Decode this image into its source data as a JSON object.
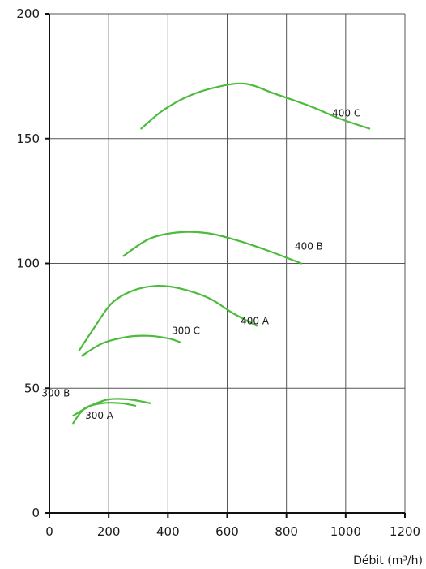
{
  "chart_data": {
    "type": "line",
    "title": "",
    "xlabel": "Débit (m³/h)",
    "ylabel": "",
    "xlim": [
      0,
      1200
    ],
    "ylim": [
      0,
      200
    ],
    "x_ticks": [
      0,
      200,
      400,
      600,
      800,
      1000,
      1200
    ],
    "y_ticks": [
      0,
      50,
      100,
      150,
      200
    ],
    "grid": true,
    "line_color": "#4cbb3c",
    "series": [
      {
        "name": "300 A",
        "points": [
          [
            80,
            36
          ],
          [
            120,
            42
          ],
          [
            180,
            44
          ],
          [
            240,
            44
          ],
          [
            290,
            43
          ]
        ]
      },
      {
        "name": "300 B",
        "points": [
          [
            80,
            39
          ],
          [
            140,
            43
          ],
          [
            200,
            45.5
          ],
          [
            270,
            45.5
          ],
          [
            340,
            44
          ]
        ]
      },
      {
        "name": "300 C",
        "points": [
          [
            110,
            63
          ],
          [
            180,
            68
          ],
          [
            260,
            70.5
          ],
          [
            330,
            71
          ],
          [
            400,
            70
          ],
          [
            440,
            68.5
          ]
        ]
      },
      {
        "name": "400 A",
        "points": [
          [
            100,
            65
          ],
          [
            150,
            74
          ],
          [
            210,
            84
          ],
          [
            280,
            89
          ],
          [
            360,
            91
          ],
          [
            440,
            90
          ],
          [
            540,
            86
          ],
          [
            620,
            80
          ],
          [
            700,
            75
          ]
        ]
      },
      {
        "name": "400 B",
        "points": [
          [
            250,
            103
          ],
          [
            340,
            110
          ],
          [
            440,
            112.5
          ],
          [
            540,
            112
          ],
          [
            640,
            109
          ],
          [
            740,
            105
          ],
          [
            850,
            100
          ]
        ]
      },
      {
        "name": "400 C",
        "points": [
          [
            310,
            154
          ],
          [
            380,
            161
          ],
          [
            460,
            166.5
          ],
          [
            560,
            170.5
          ],
          [
            660,
            172
          ],
          [
            760,
            168
          ],
          [
            880,
            163
          ],
          [
            980,
            158
          ],
          [
            1080,
            154
          ]
        ]
      }
    ]
  }
}
